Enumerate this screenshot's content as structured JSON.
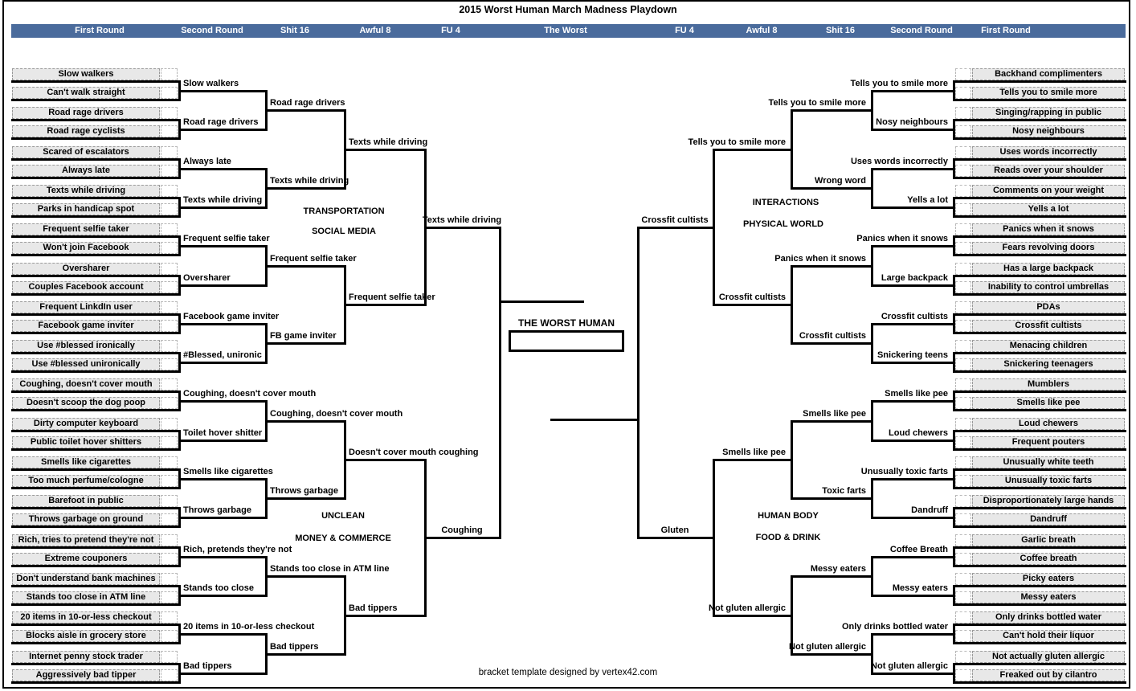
{
  "title": "2015 Worst Human March Madness Playdown",
  "header": {
    "labels": [
      "First Round",
      "Second Round",
      "Shit 16",
      "Awful 8",
      "FU 4",
      "The Worst",
      "FU 4",
      "Awful 8",
      "Shit 16",
      "Second Round",
      "First Round"
    ]
  },
  "center": {
    "label": "THE WORST HUMAN",
    "champion": ""
  },
  "footer": {
    "credit": "bracket template designed by vertex42.com"
  },
  "colors": {
    "header_bg": "#4a6b9c",
    "cell_bg": "#e8e8e8",
    "line": "#000000"
  },
  "left": {
    "region_top": [
      "TRANSPORTATION",
      "SOCIAL MEDIA"
    ],
    "region_bottom": [
      "UNCLEAN",
      "MONEY & COMMERCE"
    ],
    "round1": [
      "Slow walkers",
      "Can't walk straight",
      "Road rage drivers",
      "Road rage cyclists",
      "Scared of escalators",
      "Always late",
      "Texts while driving",
      "Parks in handicap spot",
      "Frequent selfie taker",
      "Won't join Facebook",
      "Oversharer",
      "Couples Facebook account",
      "Frequent LinkdIn user",
      "Facebook game inviter",
      "Use #blessed ironically",
      "Use #blessed unironically",
      "Coughing, doesn't cover mouth",
      "Doesn't scoop the dog poop",
      "Dirty computer keyboard",
      "Public toilet hover shitters",
      "Smells like cigarettes",
      "Too much perfume/cologne",
      "Barefoot in public",
      "Throws garbage on ground",
      "Rich, tries to pretend they're not",
      "Extreme couponers",
      "Don't understand bank machines",
      "Stands too close in ATM line",
      "20 items in 10-or-less checkout",
      "Blocks aisle in grocery store",
      "Internet penny stock trader",
      "Aggressively bad tipper"
    ],
    "round2": [
      "Slow walkers",
      "Road rage drivers",
      "Always late",
      "Texts while driving",
      "Frequent selfie taker",
      "Oversharer",
      "Facebook game inviter",
      "#Blessed, unironic",
      "Coughing, doesn't cover mouth",
      "Toilet hover shitter",
      "Smells like cigarettes",
      "Throws garbage",
      "Rich, pretends they're not",
      "Stands too close",
      "20 items in 10-or-less checkout",
      "Bad tippers"
    ],
    "shit16": [
      "Road rage drivers",
      "Texts while driving",
      "Frequent selfie taker",
      "FB game inviter",
      "Coughing, doesn't cover mouth",
      "Throws garbage",
      "Stands too close in ATM line",
      "Bad tippers"
    ],
    "awful8": [
      "Texts while driving",
      "Frequent selfie taker",
      "Doesn't cover mouth coughing",
      "Bad tippers"
    ],
    "fu4": [
      "Texts while driving",
      "Coughing"
    ],
    "finalist": ""
  },
  "right": {
    "region_top": [
      "INTERACTIONS",
      "PHYSICAL WORLD"
    ],
    "region_bottom": [
      "HUMAN BODY",
      "FOOD & DRINK"
    ],
    "round1": [
      "Backhand complimenters",
      "Tells you to smile more",
      "Singing/rapping in public",
      "Nosy neighbours",
      "Uses words incorrectly",
      "Reads over your shoulder",
      "Comments on your weight",
      "Yells a lot",
      "Panics when it snows",
      "Fears revolving doors",
      "Has a large backpack",
      "Inability to control umbrellas",
      "PDAs",
      "Crossfit cultists",
      "Menacing children",
      "Snickering teenagers",
      "Mumblers",
      "Smells like pee",
      "Loud chewers",
      "Frequent pouters",
      "Unusually white teeth",
      "Unusually toxic farts",
      "Disproportionately large hands",
      "Dandruff",
      "Garlic breath",
      "Coffee breath",
      "Picky eaters",
      "Messy eaters",
      "Only drinks bottled water",
      "Can't hold their liquor",
      "Not actually gluten allergic",
      "Freaked out by cilantro"
    ],
    "round2": [
      "Tells you to smile more",
      "Nosy neighbours",
      "Uses words incorrectly",
      "Yells a lot",
      "Panics when it snows",
      "Large backpack",
      "Crossfit cultists",
      "Snickering teens",
      "Smells like pee",
      "Loud chewers",
      "Unusually toxic farts",
      "Dandruff",
      "Coffee Breath",
      "Messy eaters",
      "Only drinks bottled water",
      "Not gluten allergic"
    ],
    "shit16": [
      "Tells you to smile more",
      "Wrong word",
      "Panics when it snows",
      "Crossfit cultists",
      "Smells like pee",
      "Toxic farts",
      "Messy eaters",
      "Not gluten allergic"
    ],
    "awful8": [
      "Tells you to smile more",
      "Crossfit cultists",
      "Smells like pee",
      "Not gluten allergic"
    ],
    "fu4": [
      "Crossfit cultists",
      "Gluten"
    ],
    "finalist": ""
  }
}
